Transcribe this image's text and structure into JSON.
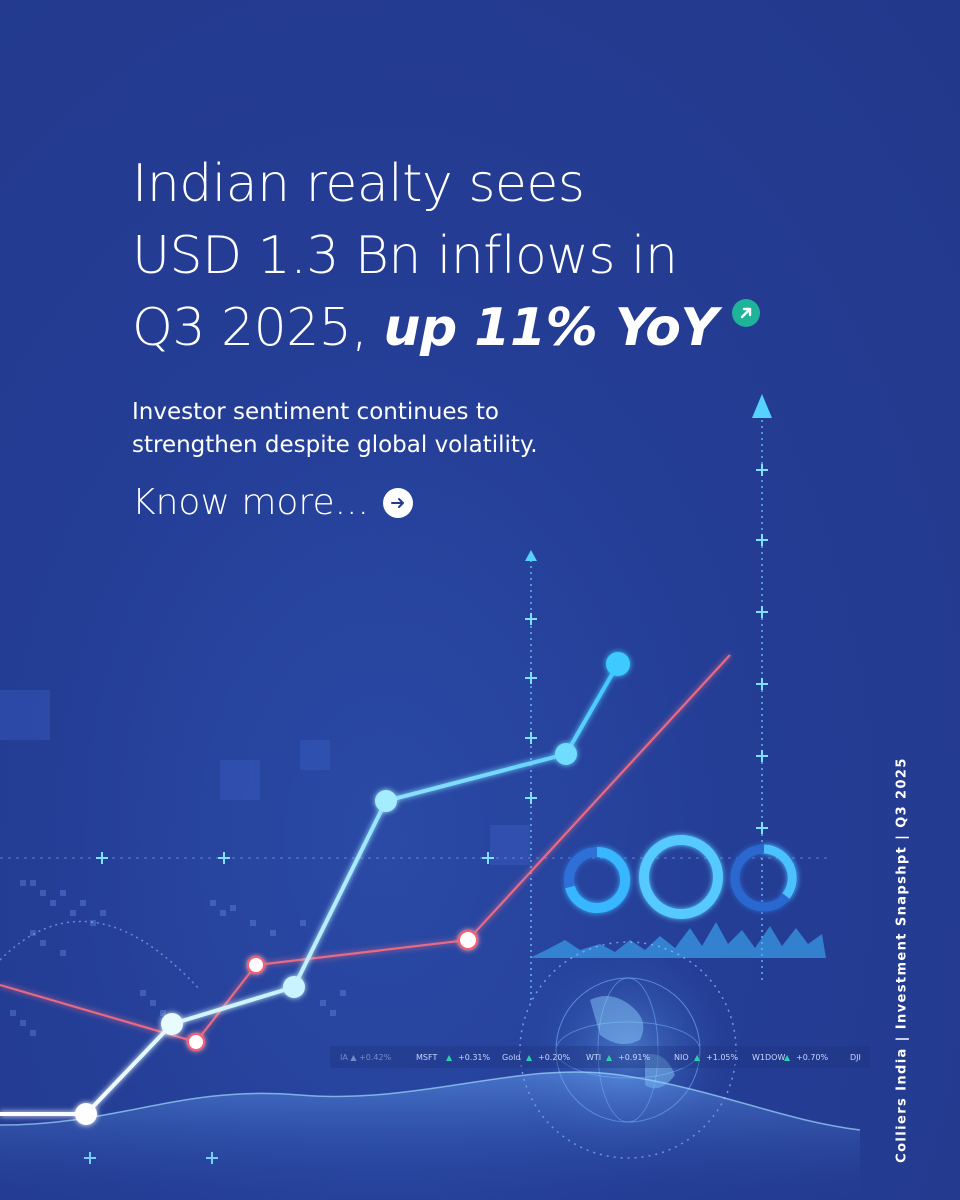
{
  "headline": {
    "line1": "Indian realty sees",
    "line2": "USD 1.3 Bn inflows in",
    "line3_prefix": "Q3 2025, ",
    "line3_emphasis": "up 11% YoY"
  },
  "subheadline": {
    "line1": "Investor sentiment continues to",
    "line2": "strengthen despite global volatility."
  },
  "cta": {
    "label": "Know more..."
  },
  "side_caption": "Colliers India | Investment Snapshpt | Q3 2025",
  "tickers": [
    {
      "symbol": "MSFT",
      "change": "+0.31%"
    },
    {
      "symbol": "Gold",
      "change": "+0.20%"
    },
    {
      "symbol": "WTI",
      "change": "+0.91%"
    },
    {
      "symbol": "NIO",
      "change": "+1.05%"
    },
    {
      "symbol": "W1DOW",
      "change": "+0.70%"
    },
    {
      "symbol": "DJI",
      "change": ""
    }
  ],
  "icons": [
    "up-right-arrow-icon",
    "right-arrow-icon"
  ],
  "colors": {
    "background": "#243b8c",
    "accent_teal": "#1fb39a",
    "line_cyan": "#7fe3ff",
    "line_red": "#ff5a6e"
  }
}
